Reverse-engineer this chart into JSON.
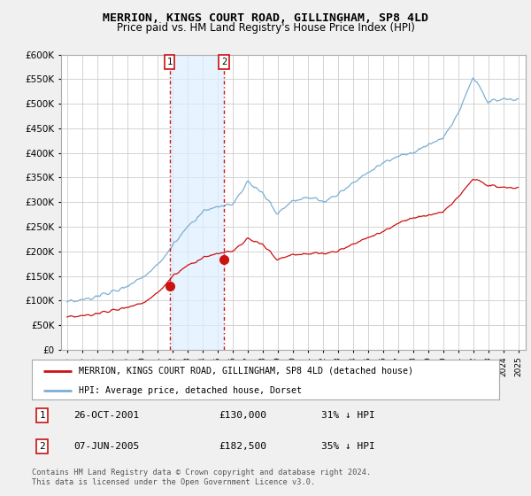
{
  "title": "MERRION, KINGS COURT ROAD, GILLINGHAM, SP8 4LD",
  "subtitle": "Price paid vs. HM Land Registry's House Price Index (HPI)",
  "legend_label1": "MERRION, KINGS COURT ROAD, GILLINGHAM, SP8 4LD (detached house)",
  "legend_label2": "HPI: Average price, detached house, Dorset",
  "transaction1_date": "26-OCT-2001",
  "transaction1_price": "£130,000",
  "transaction1_hpi": "31% ↓ HPI",
  "transaction2_date": "07-JUN-2005",
  "transaction2_price": "£182,500",
  "transaction2_hpi": "35% ↓ HPI",
  "footnote": "Contains HM Land Registry data © Crown copyright and database right 2024.\nThis data is licensed under the Open Government Licence v3.0.",
  "ylim": [
    0,
    600000
  ],
  "yticks": [
    0,
    50000,
    100000,
    150000,
    200000,
    250000,
    300000,
    350000,
    400000,
    450000,
    500000,
    550000,
    600000
  ],
  "hpi_color": "#7bafd4",
  "price_color": "#cc1111",
  "vline_color": "#cc1111",
  "shade_color": "#ddeeff",
  "bg_color": "#f0f0f0",
  "plot_bg": "#ffffff",
  "transaction1_x": 2001.82,
  "transaction1_y": 130000,
  "transaction2_x": 2005.44,
  "transaction2_y": 182500,
  "xlim_left": 1994.6,
  "xlim_right": 2025.5
}
